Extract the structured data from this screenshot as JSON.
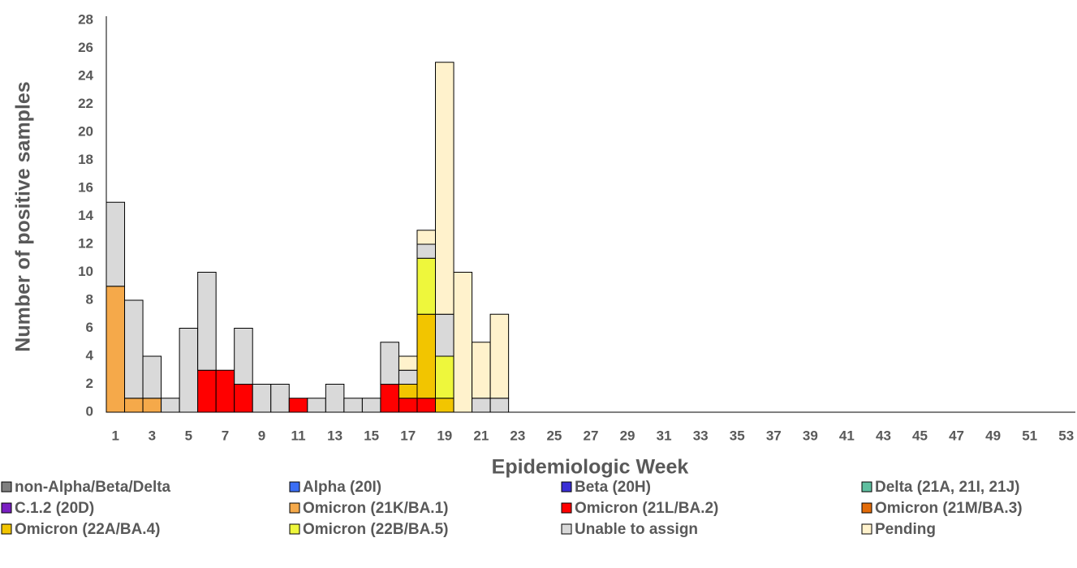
{
  "chart_data": {
    "type": "stacked_bar",
    "x_label": "Epidemiologic Week",
    "y_label": "Number of positive samples",
    "categories": [
      1,
      null,
      3,
      null,
      5,
      null,
      7,
      null,
      9,
      null,
      11,
      null,
      13,
      null,
      15,
      null,
      17,
      null,
      19,
      null,
      21,
      null,
      23,
      null,
      25,
      null,
      27,
      null,
      29,
      null,
      31,
      null,
      33,
      null,
      35,
      null,
      37,
      null,
      39,
      null,
      41,
      null,
      43,
      null,
      45,
      null,
      47,
      null,
      49,
      null,
      51,
      null,
      53
    ],
    "ylim": [
      0,
      28
    ],
    "yticks": [
      0,
      2,
      4,
      6,
      8,
      10,
      12,
      14,
      16,
      18,
      20,
      22,
      24,
      26,
      28
    ],
    "series": [
      {
        "name": "non-Alpha/Beta/Delta",
        "color": "#808080",
        "values": [
          0,
          0,
          0,
          0,
          0,
          0,
          0,
          0,
          0,
          0,
          0,
          0,
          0,
          0,
          0,
          0,
          0,
          0,
          0,
          0,
          0,
          0,
          0,
          0,
          0,
          0,
          0,
          0,
          0,
          0,
          0,
          0,
          0,
          0,
          0,
          0,
          0,
          0,
          0,
          0,
          0,
          0,
          0,
          0,
          0,
          0,
          0,
          0,
          0,
          0,
          0,
          0,
          0
        ]
      },
      {
        "name": "Alpha (20I)",
        "color": "#3b6ef5",
        "values": [
          0,
          0,
          0,
          0,
          0,
          0,
          0,
          0,
          0,
          0,
          0,
          0,
          0,
          0,
          0,
          0,
          0,
          0,
          0,
          0,
          0,
          0,
          0,
          0,
          0,
          0,
          0,
          0,
          0,
          0,
          0,
          0,
          0,
          0,
          0,
          0,
          0,
          0,
          0,
          0,
          0,
          0,
          0,
          0,
          0,
          0,
          0,
          0,
          0,
          0,
          0,
          0,
          0
        ]
      },
      {
        "name": "Beta (20H)",
        "color": "#3a2fd6",
        "values": [
          0,
          0,
          0,
          0,
          0,
          0,
          0,
          0,
          0,
          0,
          0,
          0,
          0,
          0,
          0,
          0,
          0,
          0,
          0,
          0,
          0,
          0,
          0,
          0,
          0,
          0,
          0,
          0,
          0,
          0,
          0,
          0,
          0,
          0,
          0,
          0,
          0,
          0,
          0,
          0,
          0,
          0,
          0,
          0,
          0,
          0,
          0,
          0,
          0,
          0,
          0,
          0,
          0
        ]
      },
      {
        "name": "Delta (21A, 21I, 21J)",
        "color": "#5fbfa0",
        "values": [
          0,
          0,
          0,
          0,
          0,
          0,
          0,
          0,
          0,
          0,
          0,
          0,
          0,
          0,
          0,
          0,
          0,
          0,
          0,
          0,
          0,
          0,
          0,
          0,
          0,
          0,
          0,
          0,
          0,
          0,
          0,
          0,
          0,
          0,
          0,
          0,
          0,
          0,
          0,
          0,
          0,
          0,
          0,
          0,
          0,
          0,
          0,
          0,
          0,
          0,
          0,
          0,
          0
        ]
      },
      {
        "name": "C.1.2 (20D)",
        "color": "#7a1fc2",
        "values": [
          0,
          0,
          0,
          0,
          0,
          0,
          0,
          0,
          0,
          0,
          0,
          0,
          0,
          0,
          0,
          0,
          0,
          0,
          0,
          0,
          0,
          0,
          0,
          0,
          0,
          0,
          0,
          0,
          0,
          0,
          0,
          0,
          0,
          0,
          0,
          0,
          0,
          0,
          0,
          0,
          0,
          0,
          0,
          0,
          0,
          0,
          0,
          0,
          0,
          0,
          0,
          0,
          0
        ]
      },
      {
        "name": "Omicron (21K/BA.1)",
        "color": "#f5a94a",
        "values": [
          9,
          1,
          1,
          0,
          0,
          0,
          0,
          0,
          0,
          0,
          0,
          0,
          0,
          0,
          0,
          0,
          0,
          0,
          0,
          0,
          0,
          0,
          0,
          0,
          0,
          0,
          0,
          0,
          0,
          0,
          0,
          0,
          0,
          0,
          0,
          0,
          0,
          0,
          0,
          0,
          0,
          0,
          0,
          0,
          0,
          0,
          0,
          0,
          0,
          0,
          0,
          0,
          0
        ]
      },
      {
        "name": "Omicron (21L/BA.2)",
        "color": "#ff0000",
        "values": [
          0,
          0,
          0,
          0,
          0,
          3,
          3,
          2,
          0,
          0,
          1,
          0,
          0,
          0,
          0,
          2,
          1,
          1,
          0,
          0,
          0,
          0,
          0,
          0,
          0,
          0,
          0,
          0,
          0,
          0,
          0,
          0,
          0,
          0,
          0,
          0,
          0,
          0,
          0,
          0,
          0,
          0,
          0,
          0,
          0,
          0,
          0,
          0,
          0,
          0,
          0,
          0,
          0
        ]
      },
      {
        "name": "Omicron (21M/BA.3)",
        "color": "#e36c0a",
        "values": [
          0,
          0,
          0,
          0,
          0,
          0,
          0,
          0,
          0,
          0,
          0,
          0,
          0,
          0,
          0,
          0,
          0,
          0,
          0,
          0,
          0,
          0,
          0,
          0,
          0,
          0,
          0,
          0,
          0,
          0,
          0,
          0,
          0,
          0,
          0,
          0,
          0,
          0,
          0,
          0,
          0,
          0,
          0,
          0,
          0,
          0,
          0,
          0,
          0,
          0,
          0,
          0,
          0
        ]
      },
      {
        "name": "Omicron (22A/BA.4)",
        "color": "#f2c500",
        "values": [
          0,
          0,
          0,
          0,
          0,
          0,
          0,
          0,
          0,
          0,
          0,
          0,
          0,
          0,
          0,
          0,
          1,
          6,
          1,
          0,
          0,
          0,
          0,
          0,
          0,
          0,
          0,
          0,
          0,
          0,
          0,
          0,
          0,
          0,
          0,
          0,
          0,
          0,
          0,
          0,
          0,
          0,
          0,
          0,
          0,
          0,
          0,
          0,
          0,
          0,
          0,
          0,
          0
        ]
      },
      {
        "name": "Omicron (22B/BA.5)",
        "color": "#eef73c",
        "values": [
          0,
          0,
          0,
          0,
          0,
          0,
          0,
          0,
          0,
          0,
          0,
          0,
          0,
          0,
          0,
          0,
          0,
          4,
          3,
          0,
          0,
          0,
          0,
          0,
          0,
          0,
          0,
          0,
          0,
          0,
          0,
          0,
          0,
          0,
          0,
          0,
          0,
          0,
          0,
          0,
          0,
          0,
          0,
          0,
          0,
          0,
          0,
          0,
          0,
          0,
          0,
          0,
          0
        ]
      },
      {
        "name": "Unable to assign",
        "color": "#d9d9d9",
        "values": [
          6,
          7,
          3,
          1,
          6,
          7,
          0,
          4,
          2,
          2,
          0,
          1,
          2,
          1,
          1,
          3,
          1,
          1,
          3,
          0,
          1,
          1,
          0,
          0,
          0,
          0,
          0,
          0,
          0,
          0,
          0,
          0,
          0,
          0,
          0,
          0,
          0,
          0,
          0,
          0,
          0,
          0,
          0,
          0,
          0,
          0,
          0,
          0,
          0,
          0,
          0,
          0,
          0
        ]
      },
      {
        "name": "Pending",
        "color": "#fff2cc",
        "values": [
          0,
          0,
          0,
          0,
          0,
          0,
          0,
          0,
          0,
          0,
          0,
          0,
          0,
          0,
          0,
          0,
          1,
          1,
          18,
          10,
          4,
          6,
          0,
          0,
          0,
          0,
          0,
          0,
          0,
          0,
          0,
          0,
          0,
          0,
          0,
          0,
          0,
          0,
          0,
          0,
          0,
          0,
          0,
          0,
          0,
          0,
          0,
          0,
          0,
          0,
          0,
          0,
          0
        ]
      }
    ]
  }
}
